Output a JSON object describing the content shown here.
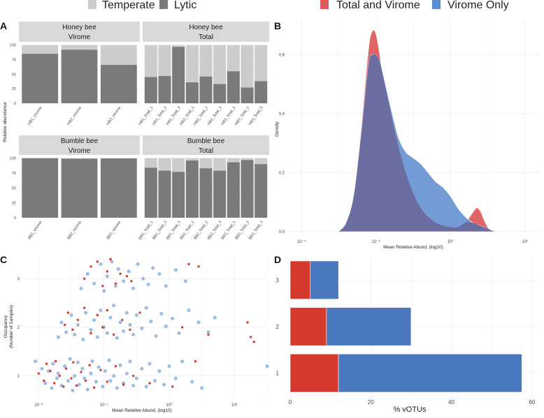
{
  "legend_top_left": {
    "items": [
      {
        "label": "Temperate",
        "color": "#cccccc"
      },
      {
        "label": "Lytic",
        "color": "#7a7a7a"
      }
    ]
  },
  "legend_top_right": {
    "items": [
      {
        "label": "Total and Virome",
        "color": "#e05b5b"
      },
      {
        "label": "Virome Only",
        "color": "#5b8bd0"
      }
    ]
  },
  "panel_labels": {
    "a": "A",
    "b": "B",
    "c": "C",
    "d": "D"
  },
  "panel_a": {
    "ylabel": "Relative abundance",
    "yticks": [
      "0",
      "25",
      "50",
      "75",
      "100"
    ],
    "facets": [
      {
        "strip1": "Honey bee",
        "strip2": "Virome",
        "samples": [
          "HB1_Virome",
          "HB2_Virome",
          "HB3_Virome"
        ],
        "lytic": [
          85,
          92,
          66
        ]
      },
      {
        "strip1": "Honey bee",
        "strip2": "Total",
        "samples": [
          "HB1_Total_1",
          "HB1_Total_2",
          "HB1_Total_3",
          "HB2_Total_1",
          "HB2_Total_2",
          "HB2_Total_3",
          "HB3_Total_1",
          "HB3_Total_2",
          "HB3_Total_3"
        ],
        "lytic": [
          45,
          47,
          97,
          36,
          46,
          33,
          55,
          27,
          38
        ]
      },
      {
        "strip1": "Bumble bee",
        "strip2": "Virome",
        "samples": [
          "BB1_Virome",
          "BB2_Virome",
          "BB3_Virome"
        ],
        "lytic": [
          100,
          99,
          99.5
        ]
      },
      {
        "strip1": "Bumble bee",
        "strip2": "Total",
        "samples": [
          "BB1_Total_1",
          "BB1_Total_2",
          "BB1_Total_3",
          "BB2_Total_1",
          "BB2_Total_2",
          "BB2_Total_3",
          "BB3_Total_1",
          "BB3_Total_2",
          "BB3_Total_3"
        ],
        "lytic": [
          84,
          79,
          77,
          96,
          83,
          79,
          93,
          97,
          90
        ]
      }
    ]
  },
  "chart_data": [
    {
      "type": "area",
      "panel": "B",
      "title": "",
      "xlabel": "Mean Relative Abund. (log10)",
      "ylabel": "Density",
      "xscale": "log10",
      "xlim": [
        -4.4,
        2.4
      ],
      "ylim": [
        -0.01,
        0.72
      ],
      "xticks": [
        "10⁻⁴",
        "10⁻²",
        "10⁰",
        "10²"
      ],
      "xtick_values": [
        -4,
        -2,
        0,
        2
      ],
      "yticks": [
        "0.0",
        "0.2",
        "0.4",
        "0.6"
      ],
      "ytick_values": [
        0,
        0.2,
        0.4,
        0.6
      ],
      "series": [
        {
          "name": "Total and Virome",
          "color": "#e05b5b",
          "x": [
            -3,
            -2.8,
            -2.6,
            -2.4,
            -2.2,
            -2.1,
            -2.0,
            -1.9,
            -1.8,
            -1.6,
            -1.4,
            -1.2,
            -1.0,
            -0.8,
            -0.6,
            -0.4,
            -0.2,
            0,
            0.2,
            0.4,
            0.6,
            0.7,
            0.8,
            0.9,
            1.0,
            1.1,
            1.2
          ],
          "y": [
            0,
            0.03,
            0.12,
            0.35,
            0.62,
            0.68,
            0.67,
            0.6,
            0.52,
            0.4,
            0.29,
            0.2,
            0.13,
            0.08,
            0.05,
            0.03,
            0.02,
            0.015,
            0.015,
            0.03,
            0.065,
            0.08,
            0.07,
            0.04,
            0.015,
            0.004,
            0
          ]
        },
        {
          "name": "Virome Only",
          "color": "#5b8bd0",
          "x": [
            -3,
            -2.8,
            -2.6,
            -2.4,
            -2.2,
            -2.1,
            -2.0,
            -1.9,
            -1.8,
            -1.6,
            -1.4,
            -1.2,
            -1.0,
            -0.8,
            -0.6,
            -0.4,
            -0.2,
            0,
            0.2,
            0.4,
            0.6,
            0.8,
            1.0,
            1.1,
            1.2
          ],
          "y": [
            0,
            0.03,
            0.12,
            0.33,
            0.57,
            0.6,
            0.6,
            0.58,
            0.53,
            0.42,
            0.32,
            0.27,
            0.25,
            0.23,
            0.2,
            0.17,
            0.15,
            0.12,
            0.08,
            0.05,
            0.03,
            0.02,
            0.01,
            0.004,
            0
          ]
        }
      ]
    },
    {
      "type": "scatter",
      "panel": "C",
      "title": "",
      "xlabel": "Mean Relative Abund. (log10)",
      "ylabel": "Occupancy (Number of Samples)",
      "ylabel_lines": [
        "Occupancy",
        "(Number of Samples)"
      ],
      "xscale": "log10",
      "xlim": [
        -2.25,
        1.5
      ],
      "ylim": [
        0.55,
        3.45
      ],
      "xticks": [
        "10⁻²",
        "10⁻¹",
        "10⁰",
        "10¹"
      ],
      "xtick_values": [
        -2,
        -1,
        0,
        1
      ],
      "yticks": [
        "1",
        "2",
        "3"
      ],
      "ytick_values": [
        1,
        2,
        3
      ],
      "series": [
        {
          "name": "Virome Only",
          "color": "#8fb3dc",
          "points": [
            [
              -2.05,
              1.3
            ],
            [
              -1.95,
              1.15
            ],
            [
              -1.9,
              0.85
            ],
            [
              -1.85,
              1.1
            ],
            [
              -1.8,
              0.75
            ],
            [
              -1.78,
              1.25
            ],
            [
              -1.72,
              0.95
            ],
            [
              -1.7,
              1.05
            ],
            [
              -1.65,
              0.8
            ],
            [
              -1.6,
              1.2
            ],
            [
              -1.55,
              0.9
            ],
            [
              -1.52,
              1.35
            ],
            [
              -1.48,
              0.7
            ],
            [
              -1.45,
              1.0
            ],
            [
              -1.4,
              1.28
            ],
            [
              -1.38,
              0.82
            ],
            [
              -1.33,
              1.15
            ],
            [
              -1.3,
              0.95
            ],
            [
              -1.25,
              0.72
            ],
            [
              -1.2,
              1.05
            ],
            [
              -1.18,
              1.3
            ],
            [
              -1.12,
              0.88
            ],
            [
              -1.08,
              1.18
            ],
            [
              -1.02,
              0.78
            ],
            [
              -0.98,
              1.1
            ],
            [
              -0.92,
              1.32
            ],
            [
              -0.9,
              0.9
            ],
            [
              -0.85,
              1.0
            ],
            [
              -0.8,
              0.75
            ],
            [
              -0.75,
              1.22
            ],
            [
              -0.7,
              0.85
            ],
            [
              -0.65,
              1.05
            ],
            [
              -0.6,
              1.3
            ],
            [
              -0.55,
              0.8
            ],
            [
              -0.5,
              0.95
            ],
            [
              -0.42,
              1.15
            ],
            [
              -0.35,
              0.78
            ],
            [
              -0.3,
              1.25
            ],
            [
              -0.22,
              0.9
            ],
            [
              -0.15,
              1.1
            ],
            [
              -0.08,
              0.82
            ],
            [
              0,
              1.2
            ],
            [
              0.1,
              0.95
            ],
            [
              0.2,
              1.3
            ],
            [
              0.35,
              0.88
            ],
            [
              0.5,
              0.75
            ],
            [
              1.5,
              1.2
            ],
            [
              -1.7,
              1.8
            ],
            [
              -1.65,
              2.1
            ],
            [
              -1.58,
              1.9
            ],
            [
              -1.5,
              2.25
            ],
            [
              -1.45,
              1.85
            ],
            [
              -1.4,
              2.05
            ],
            [
              -1.32,
              1.75
            ],
            [
              -1.28,
              2.3
            ],
            [
              -1.2,
              1.95
            ],
            [
              -1.15,
              2.15
            ],
            [
              -1.1,
              1.8
            ],
            [
              -1.05,
              2.35
            ],
            [
              -1.0,
              2.0
            ],
            [
              -0.95,
              1.88
            ],
            [
              -0.9,
              2.2
            ],
            [
              -0.85,
              2.45
            ],
            [
              -0.8,
              1.78
            ],
            [
              -0.75,
              2.1
            ],
            [
              -0.7,
              1.92
            ],
            [
              -0.65,
              2.3
            ],
            [
              -0.6,
              2.05
            ],
            [
              -0.55,
              1.85
            ],
            [
              -0.5,
              2.25
            ],
            [
              -0.42,
              1.98
            ],
            [
              -0.35,
              2.4
            ],
            [
              -0.28,
              2.12
            ],
            [
              -0.2,
              1.82
            ],
            [
              -0.12,
              2.28
            ],
            [
              -0.05,
              2.02
            ],
            [
              0.05,
              2.18
            ],
            [
              0.15,
              1.88
            ],
            [
              0.3,
              2.35
            ],
            [
              0.45,
              2.1
            ],
            [
              0.6,
              1.9
            ],
            [
              0.7,
              2.2
            ],
            [
              -1.35,
              2.8
            ],
            [
              -1.25,
              3.1
            ],
            [
              -1.15,
              2.9
            ],
            [
              -1.05,
              3.3
            ],
            [
              -1.0,
              2.75
            ],
            [
              -0.95,
              3.05
            ],
            [
              -0.88,
              3.35
            ],
            [
              -0.82,
              2.85
            ],
            [
              -0.78,
              3.2
            ],
            [
              -0.7,
              2.95
            ],
            [
              -0.62,
              3.15
            ],
            [
              -0.55,
              2.8
            ],
            [
              -0.48,
              3.3
            ],
            [
              -0.4,
              3.0
            ],
            [
              -0.32,
              2.88
            ],
            [
              -0.25,
              3.22
            ],
            [
              -0.15,
              3.1
            ],
            [
              -0.05,
              2.85
            ],
            [
              0.1,
              3.18
            ],
            [
              0.25,
              2.95
            ]
          ]
        },
        {
          "name": "Total and Virome",
          "color": "#d63a2f",
          "points": [
            [
              -2.0,
              1.05
            ],
            [
              -1.92,
              0.9
            ],
            [
              -1.88,
              1.25
            ],
            [
              -1.82,
              1.1
            ],
            [
              -1.76,
              0.85
            ],
            [
              -1.74,
              1.3
            ],
            [
              -1.68,
              1.0
            ],
            [
              -1.62,
              0.78
            ],
            [
              -1.58,
              1.15
            ],
            [
              -1.5,
              0.95
            ],
            [
              -1.47,
              1.28
            ],
            [
              -1.42,
              0.8
            ],
            [
              -1.35,
              1.08
            ],
            [
              -1.28,
              0.9
            ],
            [
              -1.22,
              1.22
            ],
            [
              -1.15,
              0.76
            ],
            [
              -1.05,
              1.12
            ],
            [
              -0.95,
              0.88
            ],
            [
              -0.82,
              1.2
            ],
            [
              -0.7,
              0.82
            ],
            [
              -0.55,
              1.0
            ],
            [
              -0.3,
              0.85
            ],
            [
              0.05,
              0.78
            ],
            [
              0.4,
              1.3
            ],
            [
              -1.6,
              2.05
            ],
            [
              -1.55,
              2.3
            ],
            [
              -1.48,
              1.95
            ],
            [
              -1.4,
              2.15
            ],
            [
              -1.3,
              2.4
            ],
            [
              -1.2,
              1.88
            ],
            [
              -1.1,
              2.25
            ],
            [
              -1.02,
              2.0
            ],
            [
              -0.95,
              2.35
            ],
            [
              -0.85,
              1.85
            ],
            [
              -0.72,
              2.15
            ],
            [
              -0.6,
              1.95
            ],
            [
              -0.45,
              2.3
            ],
            [
              0.2,
              2.0
            ],
            [
              0.6,
              1.85
            ],
            [
              1.2,
              2.1
            ],
            [
              1.25,
              1.8
            ],
            [
              1.3,
              1.7
            ],
            [
              -1.3,
              3.0
            ],
            [
              -1.2,
              3.25
            ],
            [
              -1.1,
              3.35
            ],
            [
              -1.02,
              2.85
            ],
            [
              -0.95,
              3.15
            ],
            [
              -0.9,
              3.4
            ],
            [
              -0.82,
              2.9
            ],
            [
              -0.75,
              3.1
            ],
            [
              -0.65,
              3.05
            ],
            [
              -0.58,
              2.95
            ],
            [
              0.3,
              3.3
            ],
            [
              0.45,
              3.25
            ]
          ]
        }
      ]
    },
    {
      "type": "bar",
      "panel": "D",
      "orientation": "horizontal",
      "stacked": true,
      "title": "",
      "xlabel": "% vOTUs",
      "ylabel": "",
      "categories": [
        "1",
        "2",
        "3"
      ],
      "xlim": [
        0,
        60
      ],
      "xticks": [
        "0",
        "20",
        "40",
        "60"
      ],
      "xtick_values": [
        0,
        20,
        40,
        60
      ],
      "series": [
        {
          "name": "Total and Virome",
          "color": "#d63a2f",
          "values": [
            12,
            9,
            5
          ]
        },
        {
          "name": "Virome Only",
          "color": "#4a78be",
          "values": [
            45.5,
            21,
            7
          ]
        }
      ]
    }
  ]
}
